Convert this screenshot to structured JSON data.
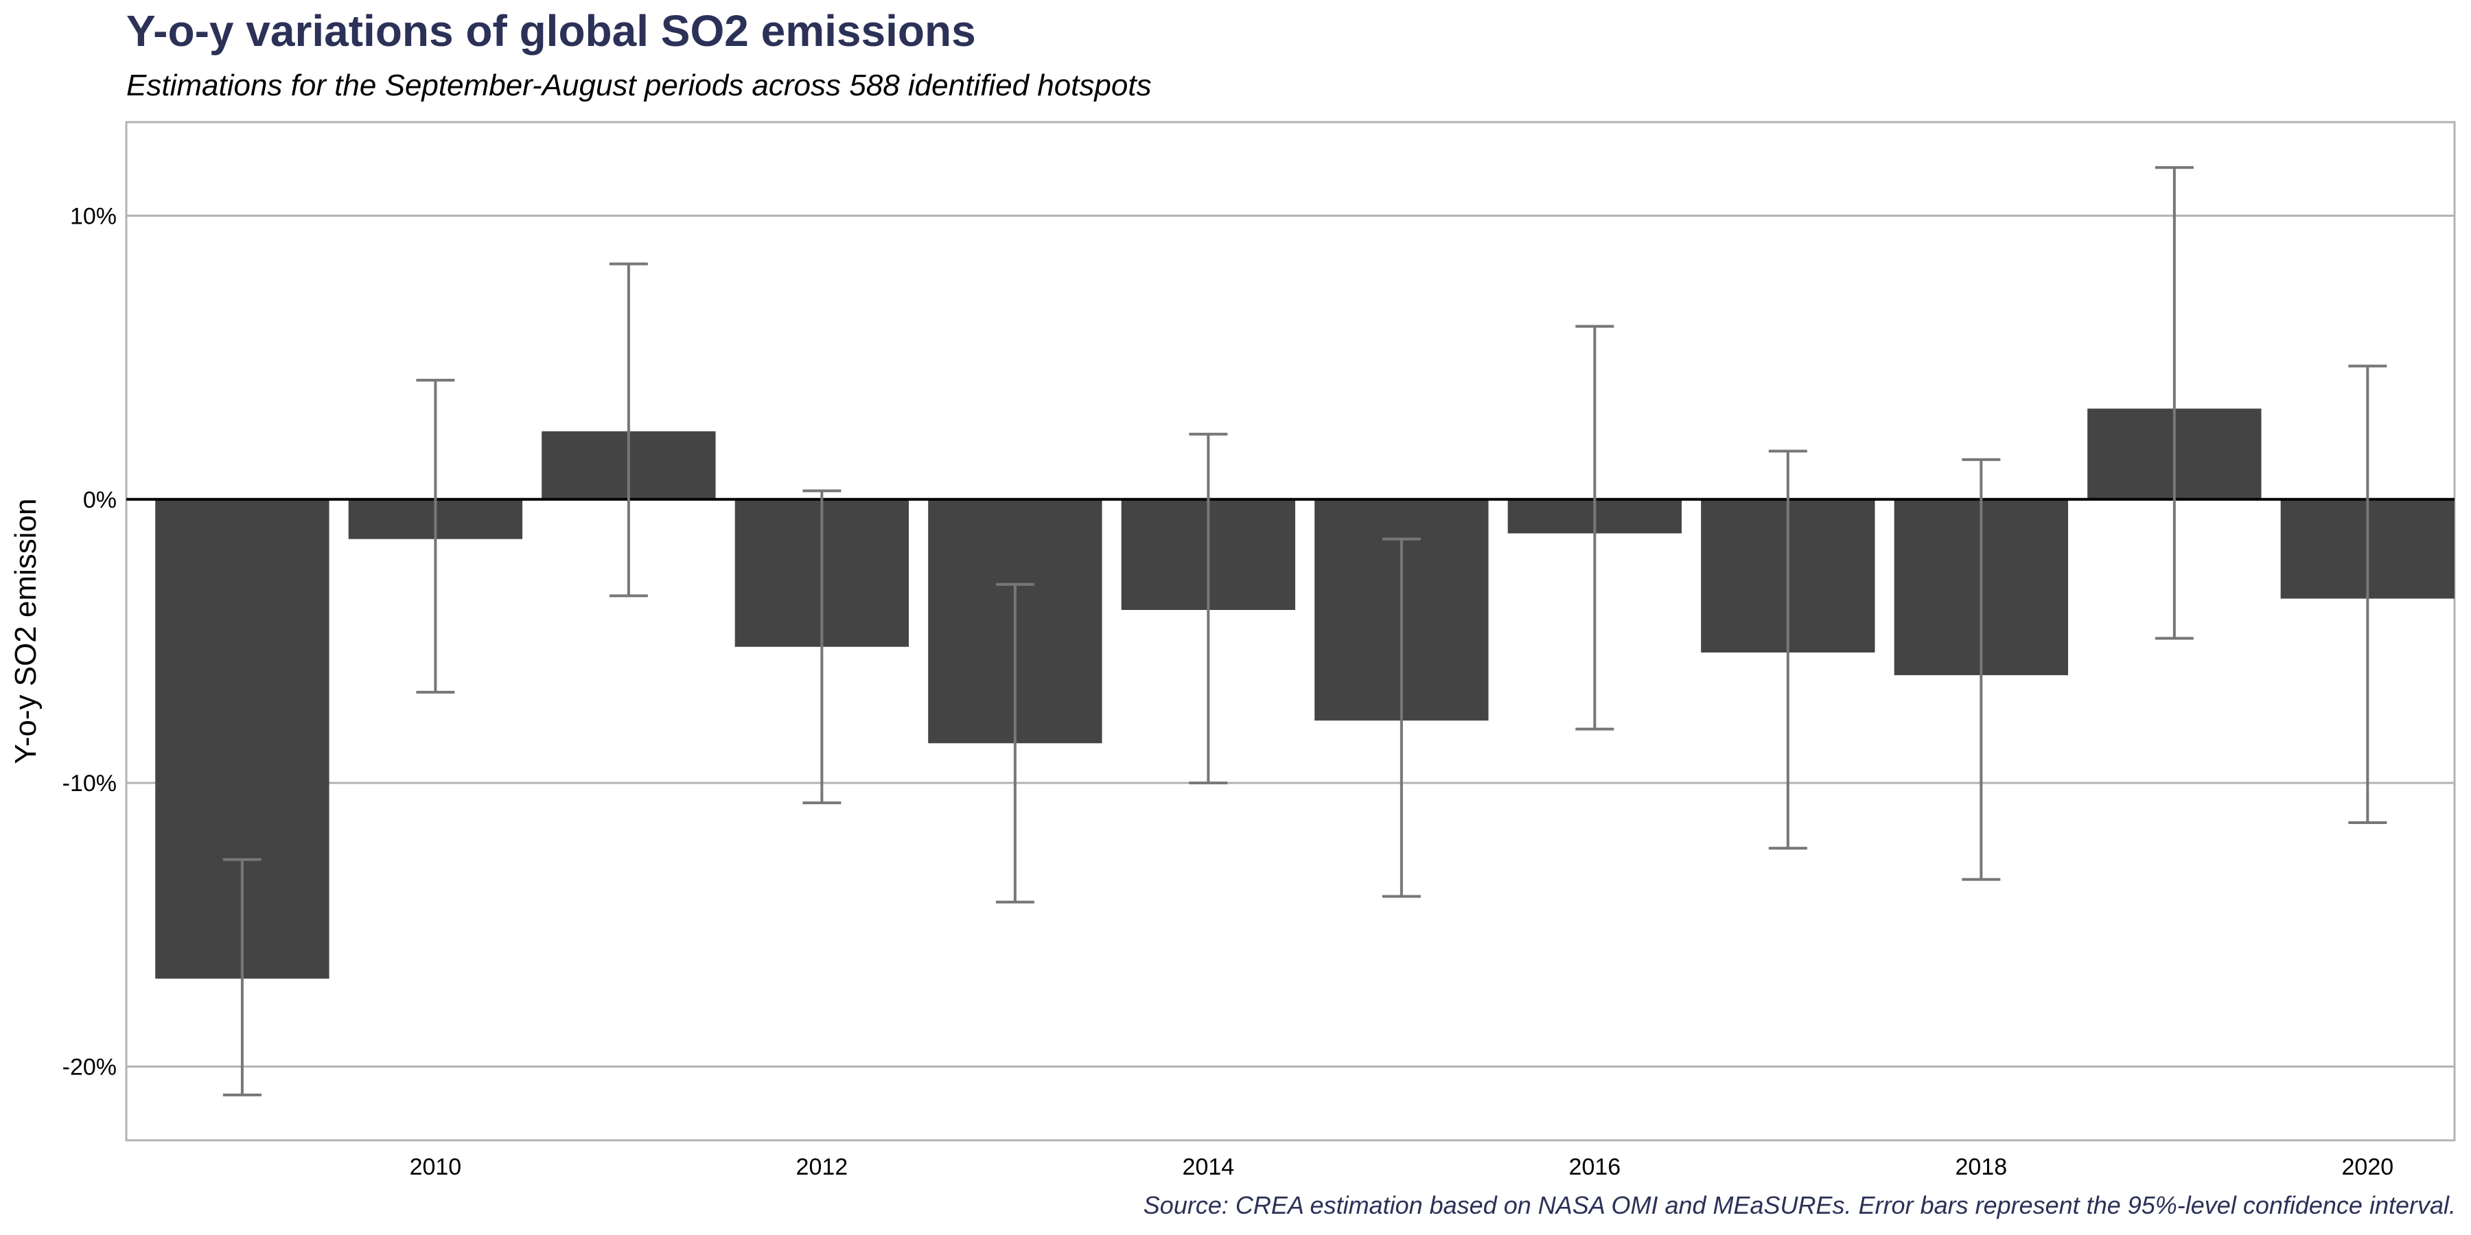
{
  "chart_data": {
    "type": "bar",
    "title": "Y-o-y variations of global SO2 emissions",
    "subtitle": "Estimations for the September-August periods across 588 identified hotspots",
    "caption": "Source: CREA estimation based on NASA OMI and MEaSUREs. Error bars represent the 95%-level confidence interval.",
    "xlabel": "",
    "ylabel": "Y-o-y SO2 emission",
    "x": [
      2009,
      2010,
      2011,
      2012,
      2013,
      2014,
      2015,
      2016,
      2017,
      2018,
      2019,
      2020
    ],
    "values": [
      -16.9,
      -1.4,
      2.4,
      -5.2,
      -8.6,
      -3.9,
      -7.8,
      -1.2,
      -5.4,
      -6.2,
      3.2,
      -3.5
    ],
    "error_lower": [
      -21.0,
      -6.8,
      -3.4,
      -10.7,
      -14.2,
      -10.0,
      -14.0,
      -8.1,
      -12.3,
      -13.4,
      -4.9,
      -11.4
    ],
    "error_upper": [
      -12.7,
      4.2,
      8.3,
      0.3,
      -3.0,
      2.3,
      -1.4,
      6.1,
      1.7,
      1.4,
      11.7,
      4.7
    ],
    "xticks": [
      2010,
      2012,
      2014,
      2016,
      2018,
      2020
    ],
    "yticks": [
      -20,
      -10,
      0,
      10
    ],
    "ytick_labels": [
      "-20%",
      "-10%",
      "0%",
      "10%"
    ],
    "xlim": [
      2008.4,
      2020.45
    ],
    "ylim": [
      -22.6,
      13.3
    ],
    "grid": "horizontal",
    "legend": "none",
    "colors": {
      "bar": "#444444",
      "error_bar": "#777777",
      "grid": "#b3b3b3",
      "zero_line": "#000000",
      "title": "#2b3157",
      "caption": "#2b3157"
    }
  }
}
